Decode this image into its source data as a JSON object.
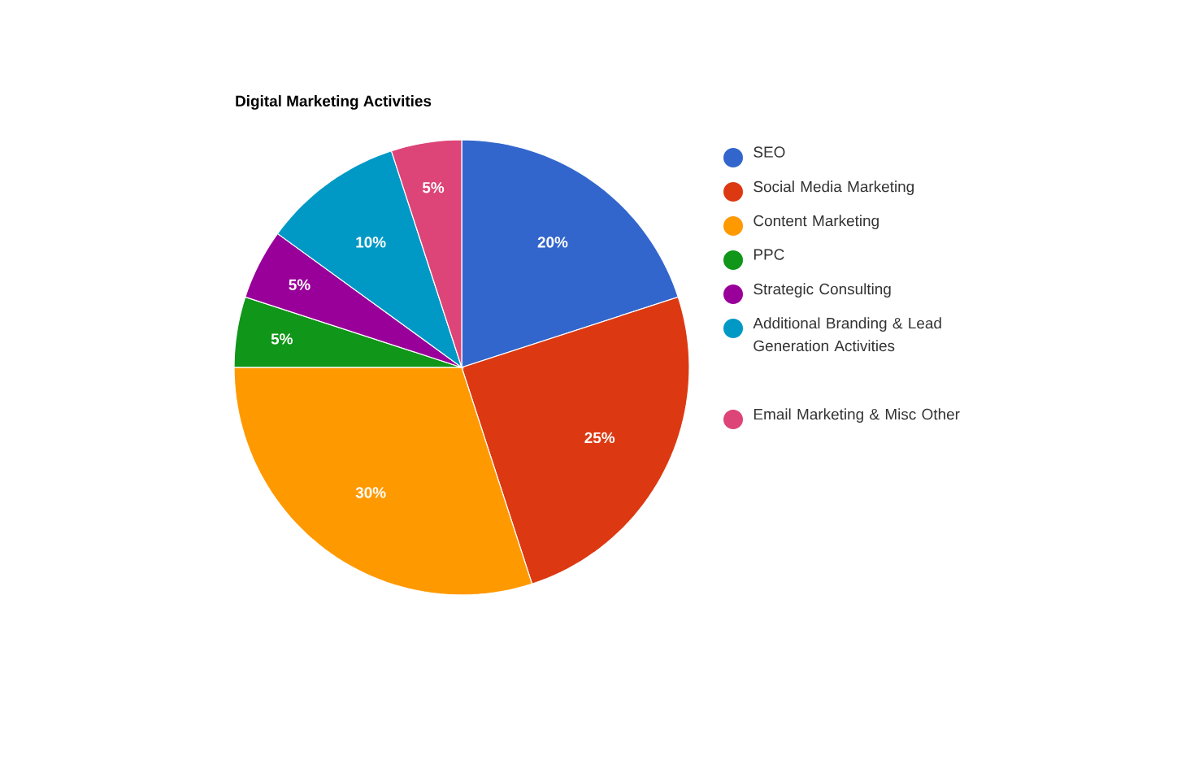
{
  "chart_data": {
    "type": "pie",
    "title": "Digital Marketing Activities",
    "categories": [
      "SEO",
      "Social Media Marketing",
      "Content Marketing",
      "PPC",
      "Strategic Consulting",
      "Additional Branding & Lead Generation Activities",
      "Email Marketing & Misc Other"
    ],
    "values": [
      20,
      25,
      30,
      5,
      5,
      10,
      5
    ],
    "colors": [
      "#3366cc",
      "#dc3912",
      "#ff9900",
      "#109618",
      "#990099",
      "#0099c6",
      "#dd4477"
    ],
    "value_labels": [
      "20%",
      "25%",
      "30%",
      "5%",
      "5%",
      "10%",
      "5%"
    ],
    "legend": "right"
  }
}
